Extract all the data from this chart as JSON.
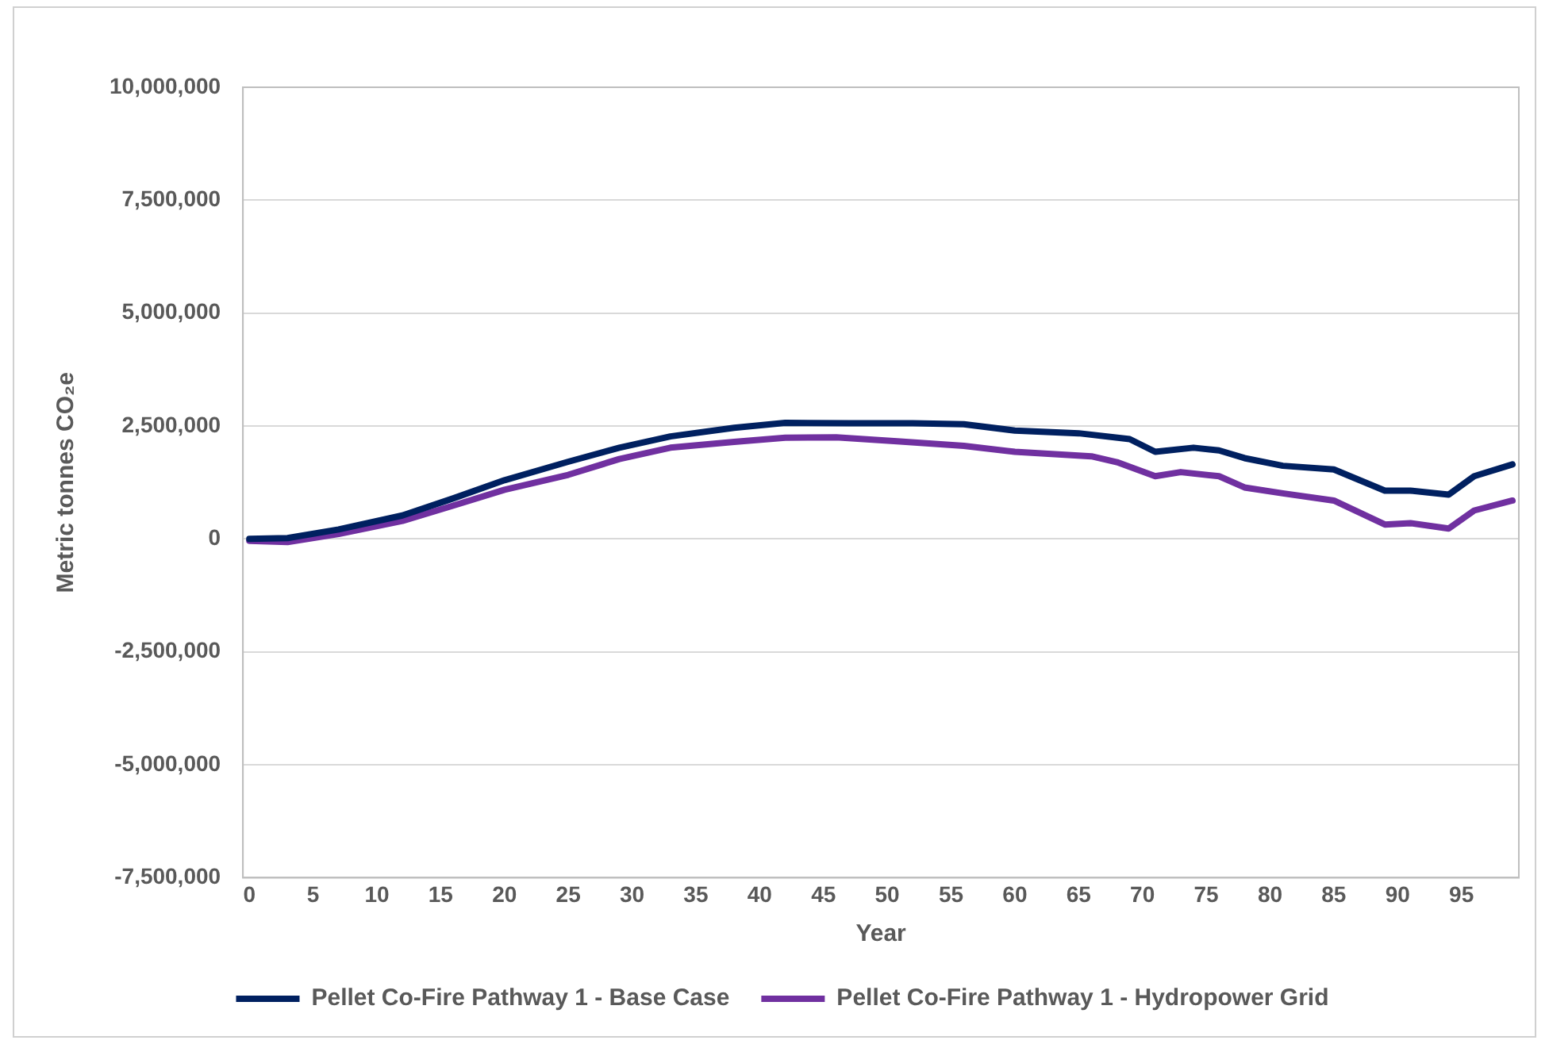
{
  "chart_data": {
    "type": "line",
    "xlabel": "Year",
    "ylabel": "Metric tonnes CO₂e",
    "xlim": [
      -0.5,
      99.5
    ],
    "xticks": [
      0,
      5,
      10,
      15,
      20,
      25,
      30,
      35,
      40,
      45,
      50,
      55,
      60,
      65,
      70,
      75,
      80,
      85,
      90,
      95
    ],
    "ylim": [
      -7500000,
      10000000
    ],
    "yticks": [
      {
        "value": -7500000,
        "label": "-7,500,000"
      },
      {
        "value": -5000000,
        "label": "-5,000,000"
      },
      {
        "value": -2500000,
        "label": "-2,500,000"
      },
      0,
      {
        "value": 2500000,
        "label": "2,500,000"
      },
      {
        "value": 5000000,
        "label": "5,000,000"
      },
      {
        "value": 7500000,
        "label": "7,500,000"
      },
      {
        "value": 10000000,
        "label": "10,000,000"
      }
    ],
    "grid": "y",
    "legend": "bottom",
    "marker": "none",
    "line_style": "solid",
    "series": [
      {
        "name": "Pellet Co-Fire Pathway 1 - Base Case",
        "color": "#002060",
        "x": [
          0,
          3,
          7,
          12,
          16,
          20,
          25,
          29,
          33,
          38,
          42,
          47,
          52,
          56,
          60,
          65,
          69,
          71,
          74,
          76,
          78,
          81,
          85,
          89,
          91,
          94,
          96,
          99
        ],
        "values": [
          0,
          20000,
          210000,
          520000,
          900000,
          1300000,
          1710000,
          2020000,
          2270000,
          2460000,
          2570000,
          2560000,
          2560000,
          2540000,
          2400000,
          2340000,
          2210000,
          1930000,
          2020000,
          1960000,
          1790000,
          1620000,
          1540000,
          1070000,
          1070000,
          980000,
          1390000,
          1650000
        ]
      },
      {
        "name": "Pellet Co-Fire Pathway 1 - Hydropower Grid",
        "color": "#7030a0",
        "x": [
          0,
          3,
          7,
          12,
          16,
          20,
          25,
          29,
          33,
          38,
          42,
          46,
          51,
          56,
          60,
          66,
          68,
          71,
          73,
          76,
          78,
          81,
          85,
          89,
          91,
          94,
          96,
          99
        ],
        "values": [
          -40000,
          -70000,
          110000,
          400000,
          740000,
          1090000,
          1420000,
          1770000,
          2020000,
          2150000,
          2240000,
          2250000,
          2160000,
          2060000,
          1930000,
          1830000,
          1700000,
          1390000,
          1480000,
          1390000,
          1140000,
          1010000,
          850000,
          320000,
          350000,
          230000,
          630000,
          850000
        ]
      }
    ]
  }
}
